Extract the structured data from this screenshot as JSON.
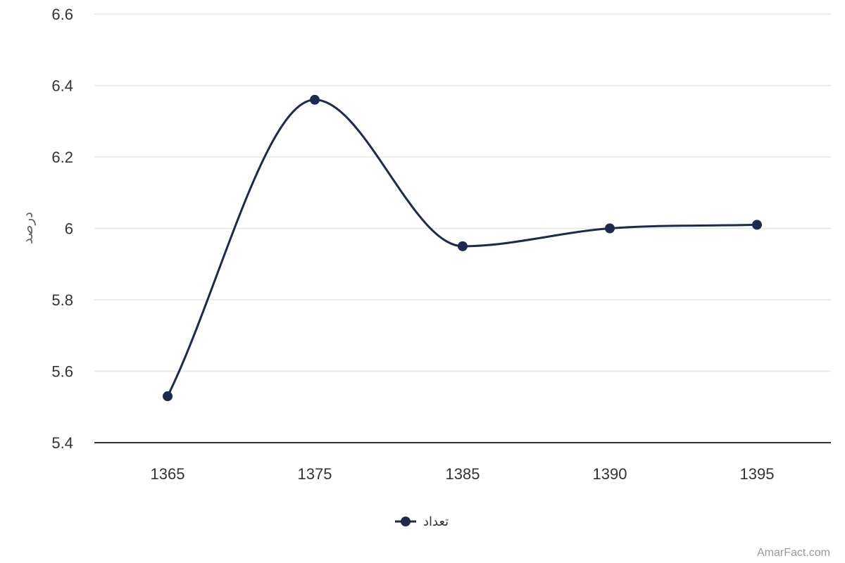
{
  "colors": {
    "series": "#1b2a4e",
    "grid": "#e6e6e6",
    "axis": "#333333",
    "text": "#333333",
    "credit": "#999999"
  },
  "credit": "AmarFact.com",
  "chart_data": {
    "type": "line",
    "smooth": true,
    "categories": [
      "1365",
      "1375",
      "1385",
      "1390",
      "1395"
    ],
    "series": [
      {
        "name": "تعداد",
        "values": [
          5.53,
          6.36,
          5.95,
          6.0,
          6.01
        ]
      }
    ],
    "ylabel": "درصد",
    "xlabel": "",
    "ylim": [
      5.4,
      6.6
    ],
    "yticks": [
      "5.4",
      "5.6",
      "5.8",
      "6",
      "6.2",
      "6.4",
      "6.6"
    ],
    "grid": true,
    "legend_position": "bottom-center"
  }
}
